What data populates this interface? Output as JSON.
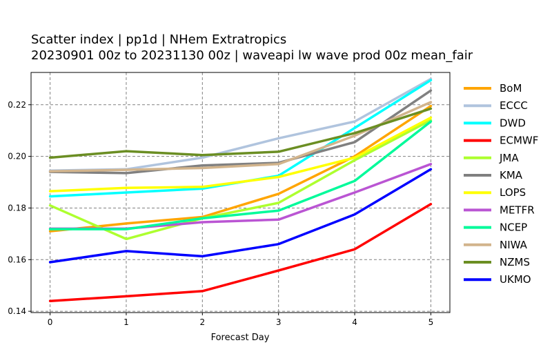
{
  "chart_data": {
    "type": "line",
    "title_line1": "Scatter index  |  pp1d | NHem Extratropics",
    "title_line2": "20230901 00z to 20231130 00z  |  waveapi lw wave prod 00z mean_fair",
    "xlabel": "Forecast Day",
    "ylabel": "",
    "x": [
      0,
      1,
      2,
      3,
      4,
      5
    ],
    "xlim": [
      -0.25,
      5.25
    ],
    "ylim": [
      0.1395,
      0.2325
    ],
    "yticks": [
      0.14,
      0.16,
      0.18,
      0.2,
      0.22
    ],
    "ytick_labels": [
      "0.14",
      "0.16",
      "0.18",
      "0.20",
      "0.22"
    ],
    "xtick_labels": [
      "0",
      "1",
      "2",
      "3",
      "4",
      "5"
    ],
    "grid": true,
    "legend_position": "right",
    "series": [
      {
        "name": "BoM",
        "color": "#ffa500",
        "values": [
          0.171,
          0.174,
          0.1765,
          0.1855,
          0.2,
          0.2195
        ]
      },
      {
        "name": "ECCC",
        "color": "#b0c4de",
        "values": [
          0.1945,
          0.195,
          0.1995,
          0.207,
          0.2135,
          0.23
        ]
      },
      {
        "name": "DWD",
        "color": "#00ffff",
        "values": [
          0.1845,
          0.186,
          0.1875,
          0.1925,
          0.211,
          0.2295
        ]
      },
      {
        "name": "ECMWF",
        "color": "#ff0000",
        "values": [
          0.144,
          0.1458,
          0.1478,
          0.1558,
          0.164,
          0.1815
        ]
      },
      {
        "name": "JMA",
        "color": "#adff2f",
        "values": [
          0.181,
          0.168,
          0.176,
          0.182,
          0.1985,
          0.214
        ]
      },
      {
        "name": "KMA",
        "color": "#808080",
        "values": [
          0.194,
          0.1935,
          0.1965,
          0.1975,
          0.2055,
          0.2255
        ]
      },
      {
        "name": "LOPS",
        "color": "#ffff00",
        "values": [
          0.1865,
          0.1878,
          0.1882,
          0.192,
          0.1995,
          0.215
        ]
      },
      {
        "name": "METFR",
        "color": "#ba55d3",
        "values": [
          0.172,
          0.172,
          0.1745,
          0.1755,
          0.186,
          0.197
        ]
      },
      {
        "name": "NCEP",
        "color": "#00fa9a",
        "values": [
          0.1718,
          0.1718,
          0.176,
          0.179,
          0.1905,
          0.2135
        ]
      },
      {
        "name": "NIWA",
        "color": "#d2b48c",
        "values": [
          0.1942,
          0.1948,
          0.1955,
          0.197,
          0.208,
          0.221
        ]
      },
      {
        "name": "NZMS",
        "color": "#6b8e23",
        "values": [
          0.1995,
          0.202,
          0.2005,
          0.2018,
          0.209,
          0.2185
        ]
      },
      {
        "name": "UKMO",
        "color": "#0000ff",
        "values": [
          0.159,
          0.1633,
          0.1613,
          0.166,
          0.1775,
          0.195
        ]
      }
    ]
  }
}
